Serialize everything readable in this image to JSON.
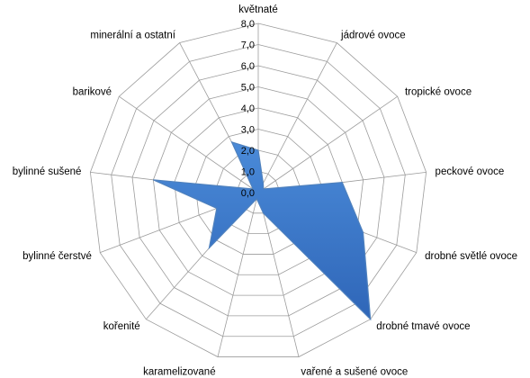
{
  "chart_data": {
    "type": "radar",
    "categories": [
      "květnaté",
      "jádrové ovoce",
      "tropické ovoce",
      "peckové ovoce",
      "drobné světlé ovoce",
      "drobné tmavé ovoce",
      "vařené a sušené ovoce",
      "karamelizované",
      "kořenité",
      "bylinné čerstvé",
      "bylinné sušené",
      "barikové",
      "minerální a ostatní"
    ],
    "series": [
      {
        "values": [
          2.0,
          0.5,
          0.3,
          4.0,
          5.3,
          8.0,
          1.0,
          0.3,
          3.5,
          2.1,
          5.0,
          0.3,
          2.7
        ]
      }
    ],
    "tick_labels": [
      "0,0",
      "1,0",
      "2,0",
      "3,0",
      "4,0",
      "5,0",
      "6,0",
      "7,0",
      "8,0"
    ],
    "rlim": [
      0,
      8
    ],
    "grid": true,
    "series_color": "#4F81BD",
    "series_fill": "#3F79CF",
    "grid_color": "#9C9C9C"
  }
}
